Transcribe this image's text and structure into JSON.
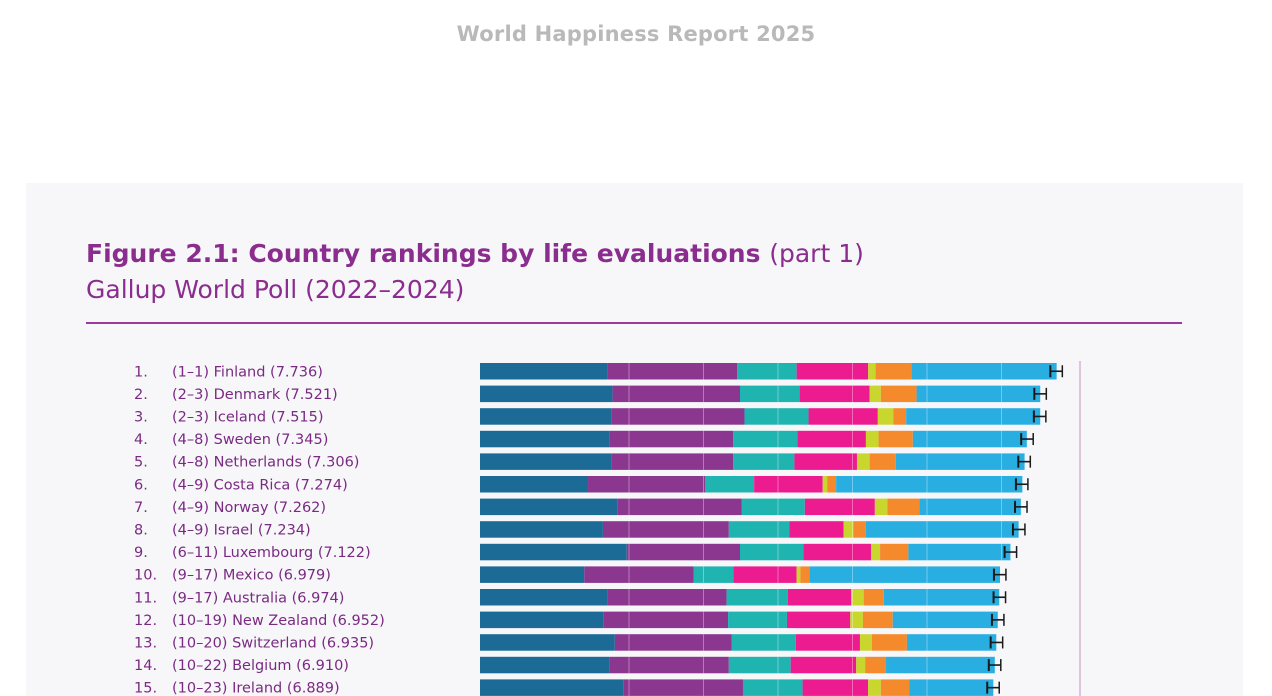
{
  "header": {
    "report_title": "World Happiness Report 2025"
  },
  "figure": {
    "title": "Figure 2.1: Country rankings by life evaluations",
    "title_suffix": "(part 1)",
    "subtitle": "Gallup World Poll (2022–2024)"
  },
  "colors": {
    "component_1": "#1b6b96",
    "component_2": "#8b378f",
    "component_3": "#1fb4b0",
    "component_4": "#ec1b8f",
    "component_5": "#c8d62e",
    "component_6": "#f58a2c",
    "component_7": "#29aee2",
    "error_bar": "#1a1a1a",
    "label": "#7a2a83"
  },
  "chart_data": {
    "type": "bar",
    "stacked": true,
    "orientation": "horizontal",
    "rows": [
      {
        "rank": "1.",
        "range": "(1–1)",
        "country": "Finland",
        "score": "7.736",
        "segments": [
          1.71,
          1.74,
          0.8,
          0.96,
          0.1,
          0.48,
          1.95
        ]
      },
      {
        "rank": "2.",
        "range": "(2–3)",
        "country": "Denmark",
        "score": "7.521",
        "segments": [
          1.78,
          1.71,
          0.8,
          0.94,
          0.15,
          0.48,
          1.66
        ]
      },
      {
        "rank": "3.",
        "range": "(2–3)",
        "country": "Iceland",
        "score": "7.515",
        "segments": [
          1.76,
          1.79,
          0.86,
          0.93,
          0.21,
          0.17,
          1.8
        ]
      },
      {
        "rank": "4.",
        "range": "(4–8)",
        "country": "Sweden",
        "score": "7.345",
        "segments": [
          1.74,
          1.66,
          0.86,
          0.92,
          0.17,
          0.46,
          1.53
        ]
      },
      {
        "rank": "5.",
        "range": "(4–8)",
        "country": "Netherlands",
        "score": "7.306",
        "segments": [
          1.77,
          1.63,
          0.82,
          0.84,
          0.17,
          0.35,
          1.73
        ]
      },
      {
        "rank": "6.",
        "range": "(4–9)",
        "country": "Costa Rica",
        "score": "7.274",
        "segments": [
          1.45,
          1.57,
          0.66,
          0.92,
          0.06,
          0.12,
          2.5
        ]
      },
      {
        "rank": "7.",
        "range": "(4–9)",
        "country": "Norway",
        "score": "7.262",
        "segments": [
          1.85,
          1.66,
          0.85,
          0.94,
          0.17,
          0.43,
          1.36
        ]
      },
      {
        "rank": "8.",
        "range": "(4–9)",
        "country": "Israel",
        "score": "7.234",
        "segments": [
          1.65,
          1.69,
          0.81,
          0.73,
          0.13,
          0.17,
          2.05
        ]
      },
      {
        "rank": "9.",
        "range": "(6–11)",
        "country": "Luxembourg",
        "score": "7.122",
        "segments": [
          1.97,
          1.52,
          0.85,
          0.91,
          0.12,
          0.38,
          1.37
        ]
      },
      {
        "rank": "10.",
        "range": "(9–17)",
        "country": "Mexico",
        "score": "6.979",
        "segments": [
          1.4,
          1.47,
          0.53,
          0.85,
          0.05,
          0.12,
          2.56
        ]
      },
      {
        "rank": "11.",
        "range": "(9–17)",
        "country": "Australia",
        "score": "6.974",
        "segments": [
          1.71,
          1.6,
          0.82,
          0.85,
          0.17,
          0.27,
          1.55
        ]
      },
      {
        "rank": "12.",
        "range": "(10–19)",
        "country": "New Zealand",
        "score": "6.952",
        "segments": [
          1.66,
          1.67,
          0.79,
          0.85,
          0.17,
          0.4,
          1.41
        ]
      },
      {
        "rank": "13.",
        "range": "(10–20)",
        "country": "Switzerland",
        "score": "6.935",
        "segments": [
          1.81,
          1.57,
          0.86,
          0.86,
          0.16,
          0.47,
          1.2
        ]
      },
      {
        "rank": "14.",
        "range": "(10–22)",
        "country": "Belgium",
        "score": "6.910",
        "segments": [
          1.74,
          1.6,
          0.83,
          0.88,
          0.12,
          0.28,
          1.46
        ]
      },
      {
        "rank": "15.",
        "range": "(10–23)",
        "country": "Ireland",
        "score": "6.889",
        "segments": [
          1.93,
          1.6,
          0.8,
          0.88,
          0.17,
          0.38,
          1.13
        ]
      }
    ]
  }
}
